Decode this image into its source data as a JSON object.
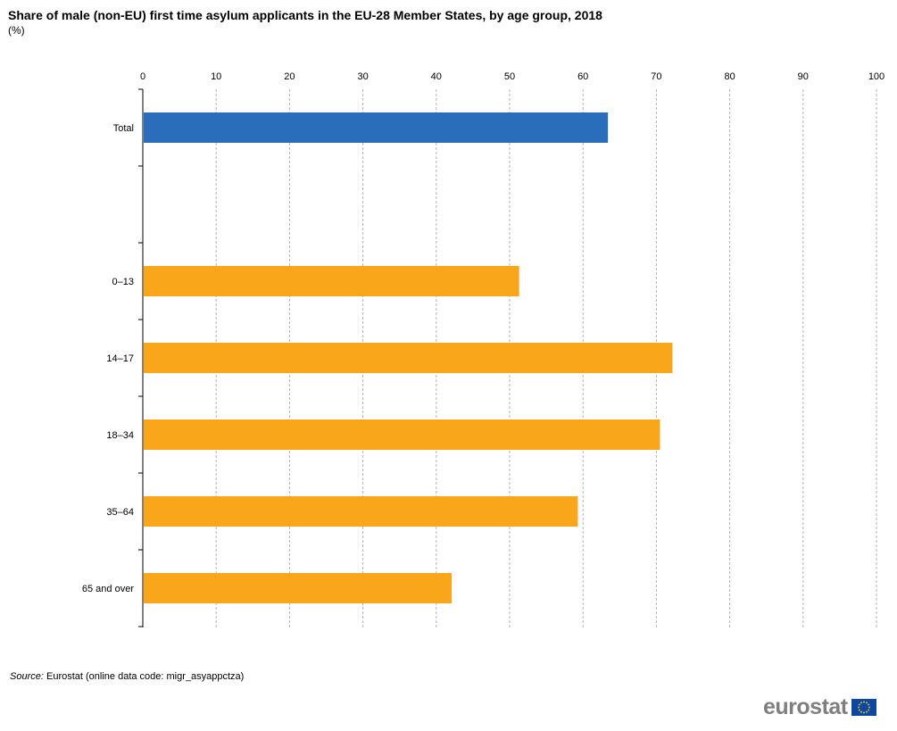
{
  "title": "Share of male (non-EU) first time asylum applicants in the EU-28 Member States, by age group, 2018",
  "subtitle": "(%)",
  "source_label": "Source:",
  "source_text": "Eurostat (online data code: migr_asyappctza)",
  "logo_text": "eurostat",
  "colors": {
    "total": "#2a6ebb",
    "age_groups": "#f9a61a",
    "grid": "#b3b3b3"
  },
  "chart_data": {
    "type": "bar",
    "orientation": "horizontal",
    "title": "Share of male (non-EU) first time asylum applicants in the EU-28 Member States, by age group, 2018",
    "subtitle": "(%)",
    "categories": [
      "Total",
      "",
      "0–13",
      "14–17",
      "18–34",
      "35–64",
      "65 and over"
    ],
    "values": [
      63.4,
      null,
      51.3,
      72.2,
      70.5,
      59.3,
      42.1
    ],
    "xlim": [
      0,
      100
    ],
    "xticks": [
      0,
      10,
      20,
      30,
      40,
      50,
      60,
      70,
      80,
      90,
      100
    ],
    "x_axis_position": "top",
    "grid": "vertical dashed",
    "legend": "none"
  }
}
